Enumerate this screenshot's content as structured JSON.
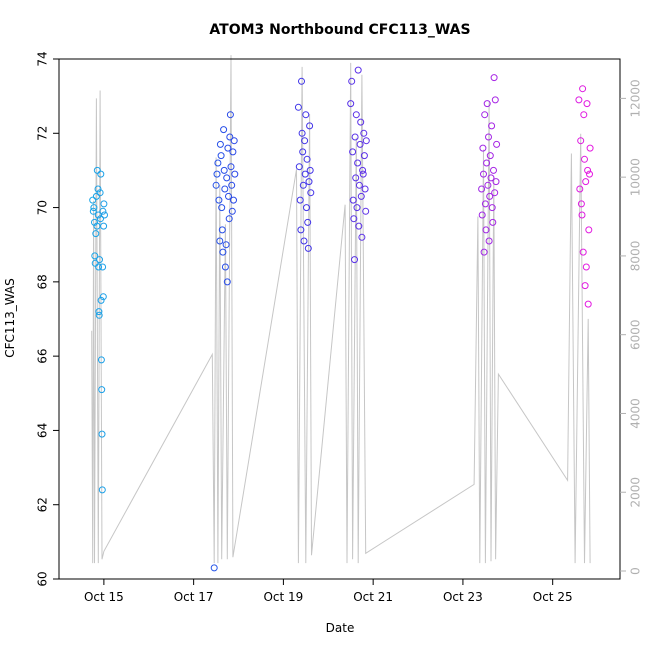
{
  "chart_data": {
    "type": "scatter",
    "title": "ATOM3 Northbound CFC113_WAS",
    "xlabel": "Date",
    "ylabel": "CFC113_WAS",
    "xlim": [
      "2016-10-14T00:00",
      "2016-10-26T12:00"
    ],
    "ylim": [
      60,
      74
    ],
    "y2lim": [
      0,
      13000
    ],
    "x_ticks": [
      {
        "label": "Oct 15",
        "value": "2016-10-15T00:00"
      },
      {
        "label": "Oct 17",
        "value": "2016-10-17T00:00"
      },
      {
        "label": "Oct 19",
        "value": "2016-10-19T00:00"
      },
      {
        "label": "Oct 21",
        "value": "2016-10-21T00:00"
      },
      {
        "label": "Oct 23",
        "value": "2016-10-23T00:00"
      },
      {
        "label": "Oct 25",
        "value": "2016-10-25T00:00"
      }
    ],
    "y_ticks": [
      "60",
      "62",
      "64",
      "66",
      "68",
      "70",
      "72",
      "74"
    ],
    "y2_ticks": [
      "0",
      "2000",
      "4000",
      "6000",
      "8000",
      "10000",
      "12000"
    ],
    "grid": false,
    "colors": {
      "axis": "#000000",
      "right_axis": "#b0b0b0",
      "altitude_line": "#c6c6c6",
      "point_gradient": [
        "#1aa6e8",
        "#2b37e8",
        "#7a2de8",
        "#e41ae0"
      ]
    },
    "points": [
      {
        "x": "2016-10-14T18:00",
        "y": 70.2
      },
      {
        "x": "2016-10-14T18:20",
        "y": 69.9
      },
      {
        "x": "2016-10-14T18:40",
        "y": 70.0
      },
      {
        "x": "2016-10-14T19:00",
        "y": 69.6
      },
      {
        "x": "2016-10-14T19:10",
        "y": 68.7
      },
      {
        "x": "2016-10-14T19:20",
        "y": 68.5
      },
      {
        "x": "2016-10-14T19:40",
        "y": 69.3
      },
      {
        "x": "2016-10-14T20:00",
        "y": 70.3
      },
      {
        "x": "2016-10-14T20:20",
        "y": 69.5
      },
      {
        "x": "2016-10-14T20:30",
        "y": 71.0
      },
      {
        "x": "2016-10-14T20:50",
        "y": 70.5
      },
      {
        "x": "2016-10-14T21:00",
        "y": 69.8
      },
      {
        "x": "2016-10-14T21:10",
        "y": 68.4
      },
      {
        "x": "2016-10-14T21:20",
        "y": 67.2
      },
      {
        "x": "2016-10-14T21:30",
        "y": 67.1
      },
      {
        "x": "2016-10-14T21:40",
        "y": 68.6
      },
      {
        "x": "2016-10-14T22:00",
        "y": 70.4
      },
      {
        "x": "2016-10-14T22:10",
        "y": 69.7
      },
      {
        "x": "2016-10-14T22:20",
        "y": 70.9
      },
      {
        "x": "2016-10-14T22:30",
        "y": 67.5
      },
      {
        "x": "2016-10-14T22:40",
        "y": 65.9
      },
      {
        "x": "2016-10-14T22:50",
        "y": 65.1
      },
      {
        "x": "2016-10-14T23:00",
        "y": 63.9
      },
      {
        "x": "2016-10-14T23:10",
        "y": 62.4
      },
      {
        "x": "2016-10-14T23:20",
        "y": 68.4
      },
      {
        "x": "2016-10-14T23:30",
        "y": 69.9
      },
      {
        "x": "2016-10-14T23:40",
        "y": 67.6
      },
      {
        "x": "2016-10-14T23:50",
        "y": 69.5
      },
      {
        "x": "2016-10-15T00:00",
        "y": 70.1
      },
      {
        "x": "2016-10-15T00:20",
        "y": 69.8
      },
      {
        "x": "2016-10-17T11:00",
        "y": 60.3
      },
      {
        "x": "2016-10-17T12:00",
        "y": 70.6
      },
      {
        "x": "2016-10-17T12:30",
        "y": 70.9
      },
      {
        "x": "2016-10-17T13:00",
        "y": 71.2
      },
      {
        "x": "2016-10-17T13:30",
        "y": 70.2
      },
      {
        "x": "2016-10-17T14:00",
        "y": 69.1
      },
      {
        "x": "2016-10-17T14:20",
        "y": 71.7
      },
      {
        "x": "2016-10-17T14:40",
        "y": 71.4
      },
      {
        "x": "2016-10-17T15:00",
        "y": 70.0
      },
      {
        "x": "2016-10-17T15:20",
        "y": 69.4
      },
      {
        "x": "2016-10-17T15:40",
        "y": 68.8
      },
      {
        "x": "2016-10-17T16:00",
        "y": 72.1
      },
      {
        "x": "2016-10-17T16:20",
        "y": 71.0
      },
      {
        "x": "2016-10-17T16:40",
        "y": 70.5
      },
      {
        "x": "2016-10-17T17:00",
        "y": 68.4
      },
      {
        "x": "2016-10-17T17:20",
        "y": 69.0
      },
      {
        "x": "2016-10-17T17:40",
        "y": 70.8
      },
      {
        "x": "2016-10-17T18:00",
        "y": 68.0
      },
      {
        "x": "2016-10-17T18:20",
        "y": 71.6
      },
      {
        "x": "2016-10-17T18:40",
        "y": 70.3
      },
      {
        "x": "2016-10-17T19:00",
        "y": 69.7
      },
      {
        "x": "2016-10-17T19:20",
        "y": 71.9
      },
      {
        "x": "2016-10-17T19:40",
        "y": 72.5
      },
      {
        "x": "2016-10-17T20:00",
        "y": 71.1
      },
      {
        "x": "2016-10-17T20:20",
        "y": 70.6
      },
      {
        "x": "2016-10-17T20:40",
        "y": 69.9
      },
      {
        "x": "2016-10-17T21:00",
        "y": 71.5
      },
      {
        "x": "2016-10-17T21:20",
        "y": 70.2
      },
      {
        "x": "2016-10-17T21:40",
        "y": 71.8
      },
      {
        "x": "2016-10-17T22:00",
        "y": 70.9
      },
      {
        "x": "2016-10-19T08:00",
        "y": 72.7
      },
      {
        "x": "2016-10-19T08:30",
        "y": 71.1
      },
      {
        "x": "2016-10-19T09:00",
        "y": 70.2
      },
      {
        "x": "2016-10-19T09:20",
        "y": 69.4
      },
      {
        "x": "2016-10-19T09:40",
        "y": 73.4
      },
      {
        "x": "2016-10-19T10:00",
        "y": 72.0
      },
      {
        "x": "2016-10-19T10:20",
        "y": 71.5
      },
      {
        "x": "2016-10-19T10:40",
        "y": 70.6
      },
      {
        "x": "2016-10-19T11:00",
        "y": 69.1
      },
      {
        "x": "2016-10-19T11:20",
        "y": 71.8
      },
      {
        "x": "2016-10-19T11:40",
        "y": 70.9
      },
      {
        "x": "2016-10-19T12:00",
        "y": 72.5
      },
      {
        "x": "2016-10-19T12:20",
        "y": 70.0
      },
      {
        "x": "2016-10-19T12:40",
        "y": 71.3
      },
      {
        "x": "2016-10-19T13:00",
        "y": 69.6
      },
      {
        "x": "2016-10-19T13:20",
        "y": 68.9
      },
      {
        "x": "2016-10-19T13:40",
        "y": 70.7
      },
      {
        "x": "2016-10-19T14:00",
        "y": 72.2
      },
      {
        "x": "2016-10-19T14:20",
        "y": 71.0
      },
      {
        "x": "2016-10-19T14:40",
        "y": 70.4
      },
      {
        "x": "2016-10-20T12:00",
        "y": 72.8
      },
      {
        "x": "2016-10-20T12:30",
        "y": 73.4
      },
      {
        "x": "2016-10-20T13:00",
        "y": 71.5
      },
      {
        "x": "2016-10-20T13:20",
        "y": 70.2
      },
      {
        "x": "2016-10-20T13:40",
        "y": 69.7
      },
      {
        "x": "2016-10-20T14:00",
        "y": 68.6
      },
      {
        "x": "2016-10-20T14:20",
        "y": 71.9
      },
      {
        "x": "2016-10-20T14:40",
        "y": 70.8
      },
      {
        "x": "2016-10-20T15:00",
        "y": 72.5
      },
      {
        "x": "2016-10-20T15:20",
        "y": 70.0
      },
      {
        "x": "2016-10-20T15:40",
        "y": 71.2
      },
      {
        "x": "2016-10-20T16:00",
        "y": 73.7
      },
      {
        "x": "2016-10-20T16:20",
        "y": 69.5
      },
      {
        "x": "2016-10-20T16:40",
        "y": 70.6
      },
      {
        "x": "2016-10-20T17:00",
        "y": 71.7
      },
      {
        "x": "2016-10-20T17:20",
        "y": 72.3
      },
      {
        "x": "2016-10-20T17:40",
        "y": 70.3
      },
      {
        "x": "2016-10-20T18:00",
        "y": 69.2
      },
      {
        "x": "2016-10-20T18:20",
        "y": 71.0
      },
      {
        "x": "2016-10-20T18:40",
        "y": 70.9
      },
      {
        "x": "2016-10-20T19:00",
        "y": 72.0
      },
      {
        "x": "2016-10-20T19:20",
        "y": 71.4
      },
      {
        "x": "2016-10-20T19:40",
        "y": 70.5
      },
      {
        "x": "2016-10-20T20:00",
        "y": 69.9
      },
      {
        "x": "2016-10-20T20:20",
        "y": 71.8
      },
      {
        "x": "2016-10-23T10:00",
        "y": 70.5
      },
      {
        "x": "2016-10-23T10:20",
        "y": 69.8
      },
      {
        "x": "2016-10-23T10:40",
        "y": 71.6
      },
      {
        "x": "2016-10-23T11:00",
        "y": 70.9
      },
      {
        "x": "2016-10-23T11:20",
        "y": 68.8
      },
      {
        "x": "2016-10-23T11:40",
        "y": 72.5
      },
      {
        "x": "2016-10-23T12:00",
        "y": 70.1
      },
      {
        "x": "2016-10-23T12:20",
        "y": 69.4
      },
      {
        "x": "2016-10-23T12:40",
        "y": 71.2
      },
      {
        "x": "2016-10-23T13:00",
        "y": 72.8
      },
      {
        "x": "2016-10-23T13:20",
        "y": 70.6
      },
      {
        "x": "2016-10-23T13:40",
        "y": 71.9
      },
      {
        "x": "2016-10-23T14:00",
        "y": 69.1
      },
      {
        "x": "2016-10-23T14:20",
        "y": 70.3
      },
      {
        "x": "2016-10-23T14:40",
        "y": 71.4
      },
      {
        "x": "2016-10-23T15:00",
        "y": 70.8
      },
      {
        "x": "2016-10-23T15:20",
        "y": 72.2
      },
      {
        "x": "2016-10-23T15:40",
        "y": 70.0
      },
      {
        "x": "2016-10-23T16:00",
        "y": 69.6
      },
      {
        "x": "2016-10-23T16:20",
        "y": 71.0
      },
      {
        "x": "2016-10-23T16:40",
        "y": 73.5
      },
      {
        "x": "2016-10-23T17:00",
        "y": 70.4
      },
      {
        "x": "2016-10-23T17:20",
        "y": 72.9
      },
      {
        "x": "2016-10-23T17:40",
        "y": 70.7
      },
      {
        "x": "2016-10-23T18:00",
        "y": 71.7
      },
      {
        "x": "2016-10-25T14:00",
        "y": 72.9
      },
      {
        "x": "2016-10-25T14:30",
        "y": 70.5
      },
      {
        "x": "2016-10-25T15:00",
        "y": 71.8
      },
      {
        "x": "2016-10-25T15:20",
        "y": 70.1
      },
      {
        "x": "2016-10-25T15:40",
        "y": 69.8
      },
      {
        "x": "2016-10-25T16:00",
        "y": 73.2
      },
      {
        "x": "2016-10-25T16:20",
        "y": 68.8
      },
      {
        "x": "2016-10-25T16:40",
        "y": 72.5
      },
      {
        "x": "2016-10-25T17:00",
        "y": 71.3
      },
      {
        "x": "2016-10-25T17:20",
        "y": 67.9
      },
      {
        "x": "2016-10-25T17:40",
        "y": 70.7
      },
      {
        "x": "2016-10-25T18:00",
        "y": 68.4
      },
      {
        "x": "2016-10-25T18:20",
        "y": 72.8
      },
      {
        "x": "2016-10-25T18:40",
        "y": 71.0
      },
      {
        "x": "2016-10-25T19:00",
        "y": 67.4
      },
      {
        "x": "2016-10-25T19:20",
        "y": 69.4
      },
      {
        "x": "2016-10-25T19:40",
        "y": 70.9
      },
      {
        "x": "2016-10-25T20:00",
        "y": 71.6
      }
    ],
    "altitude": [
      {
        "x": "2016-10-14T17:30",
        "y": 6100
      },
      {
        "x": "2016-10-14T18:00",
        "y": 200
      },
      {
        "x": "2016-10-14T18:30",
        "y": 9400
      },
      {
        "x": "2016-10-14T19:00",
        "y": 200
      },
      {
        "x": "2016-10-14T20:00",
        "y": 12000
      },
      {
        "x": "2016-10-14T21:00",
        "y": 200
      },
      {
        "x": "2016-10-14T22:00",
        "y": 12200
      },
      {
        "x": "2016-10-14T23:00",
        "y": 300
      },
      {
        "x": "2016-10-15T00:00",
        "y": 500
      },
      {
        "x": "2016-10-17T10:00",
        "y": 5500
      },
      {
        "x": "2016-10-17T11:00",
        "y": 200
      },
      {
        "x": "2016-10-17T12:00",
        "y": 10500
      },
      {
        "x": "2016-10-17T13:00",
        "y": 200
      },
      {
        "x": "2016-10-17T14:00",
        "y": 9800
      },
      {
        "x": "2016-10-17T15:00",
        "y": 300
      },
      {
        "x": "2016-10-17T17:00",
        "y": 8800
      },
      {
        "x": "2016-10-17T18:00",
        "y": 300
      },
      {
        "x": "2016-10-17T20:00",
        "y": 13100
      },
      {
        "x": "2016-10-17T21:00",
        "y": 350
      },
      {
        "x": "2016-10-19T07:00",
        "y": 10200
      },
      {
        "x": "2016-10-19T08:00",
        "y": 200
      },
      {
        "x": "2016-10-19T10:00",
        "y": 12800
      },
      {
        "x": "2016-10-19T12:00",
        "y": 200
      },
      {
        "x": "2016-10-19T14:00",
        "y": 11600
      },
      {
        "x": "2016-10-19T15:00",
        "y": 400
      },
      {
        "x": "2016-10-20T09:00",
        "y": 9300
      },
      {
        "x": "2016-10-20T10:00",
        "y": 200
      },
      {
        "x": "2016-10-20T12:00",
        "y": 12900
      },
      {
        "x": "2016-10-20T13:00",
        "y": 300
      },
      {
        "x": "2016-10-20T15:00",
        "y": 11000
      },
      {
        "x": "2016-10-20T16:00",
        "y": 200
      },
      {
        "x": "2016-10-20T18:00",
        "y": 12600
      },
      {
        "x": "2016-10-20T20:00",
        "y": 450
      },
      {
        "x": "2016-10-23T06:00",
        "y": 2200
      },
      {
        "x": "2016-10-23T08:00",
        "y": 9000
      },
      {
        "x": "2016-10-23T09:00",
        "y": 200
      },
      {
        "x": "2016-10-23T11:00",
        "y": 10700
      },
      {
        "x": "2016-10-23T12:00",
        "y": 200
      },
      {
        "x": "2016-10-23T14:00",
        "y": 11900
      },
      {
        "x": "2016-10-23T15:00",
        "y": 250
      },
      {
        "x": "2016-10-23T16:30",
        "y": 10000
      },
      {
        "x": "2016-10-23T17:30",
        "y": 300
      },
      {
        "x": "2016-10-23T19:00",
        "y": 5000
      },
      {
        "x": "2016-10-25T08:00",
        "y": 2300
      },
      {
        "x": "2016-10-25T10:00",
        "y": 10600
      },
      {
        "x": "2016-10-25T12:00",
        "y": 200
      },
      {
        "x": "2016-10-25T15:00",
        "y": 11100
      },
      {
        "x": "2016-10-25T17:00",
        "y": 200
      },
      {
        "x": "2016-10-25T19:00",
        "y": 6400
      },
      {
        "x": "2016-10-25T20:00",
        "y": 200
      }
    ]
  }
}
